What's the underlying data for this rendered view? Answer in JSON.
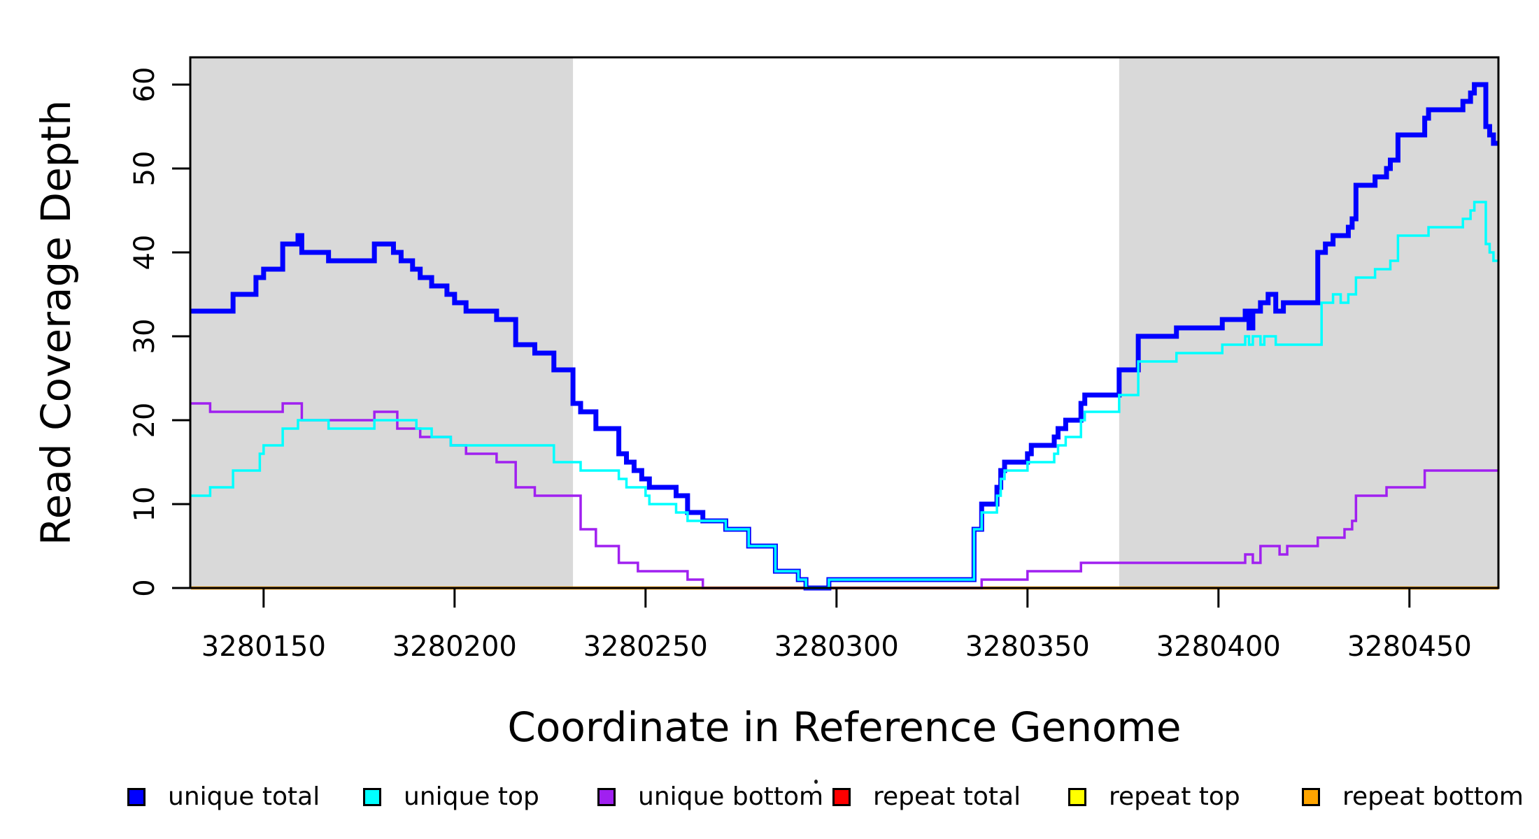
{
  "chart_data": {
    "type": "line",
    "line_style": "step",
    "xlabel": "Coordinate in Reference Genome",
    "ylabel": "Read Coverage Depth",
    "xlim": [
      3280130.8,
      3280473.3
    ],
    "ylim": [
      0,
      63.25
    ],
    "x_ticks": [
      3280150,
      3280200,
      3280250,
      3280300,
      3280350,
      3280400,
      3280450
    ],
    "y_ticks": [
      0,
      10,
      20,
      30,
      40,
      50,
      60
    ],
    "grid": false,
    "legend_position": "bottom",
    "shaded_regions": [
      {
        "from": 3280130.8,
        "to": 3280231,
        "color": "#D9D9D9"
      },
      {
        "from": 3280374,
        "to": 3280473.3,
        "color": "#D9D9D9"
      }
    ],
    "series": [
      {
        "name": "unique total",
        "color": "#0000FF",
        "width": 7,
        "draw_order": 4,
        "points": [
          [
            3280131,
            33
          ],
          [
            3280142,
            35
          ],
          [
            3280148,
            37
          ],
          [
            3280150,
            38
          ],
          [
            3280155,
            41
          ],
          [
            3280159,
            42
          ],
          [
            3280160,
            40
          ],
          [
            3280167,
            39
          ],
          [
            3280179,
            41
          ],
          [
            3280184,
            40
          ],
          [
            3280186,
            39
          ],
          [
            3280189,
            38
          ],
          [
            3280191,
            37
          ],
          [
            3280194,
            36
          ],
          [
            3280198,
            35
          ],
          [
            3280200,
            34
          ],
          [
            3280203,
            33
          ],
          [
            3280211,
            32
          ],
          [
            3280216,
            29
          ],
          [
            3280221,
            28
          ],
          [
            3280226,
            26
          ],
          [
            3280231,
            22
          ],
          [
            3280233,
            21
          ],
          [
            3280237,
            19
          ],
          [
            3280243,
            16
          ],
          [
            3280245,
            15
          ],
          [
            3280247,
            14
          ],
          [
            3280249,
            13
          ],
          [
            3280251,
            12
          ],
          [
            3280258,
            11
          ],
          [
            3280261,
            9
          ],
          [
            3280265,
            8
          ],
          [
            3280271,
            7
          ],
          [
            3280277,
            5
          ],
          [
            3280284,
            2
          ],
          [
            3280290,
            1
          ],
          [
            3280292,
            0
          ],
          [
            3280298,
            1
          ],
          [
            3280336,
            7
          ],
          [
            3280338,
            10
          ],
          [
            3280342,
            12
          ],
          [
            3280343,
            14
          ],
          [
            3280344,
            15
          ],
          [
            3280350,
            16
          ],
          [
            3280351,
            17
          ],
          [
            3280357,
            18
          ],
          [
            3280358,
            19
          ],
          [
            3280360,
            20
          ],
          [
            3280364,
            22
          ],
          [
            3280365,
            23
          ],
          [
            3280374,
            26
          ],
          [
            3280379,
            30
          ],
          [
            3280389,
            31
          ],
          [
            3280401,
            32
          ],
          [
            3280407,
            33
          ],
          [
            3280408,
            31
          ],
          [
            3280409,
            33
          ],
          [
            3280411,
            34
          ],
          [
            3280413,
            35
          ],
          [
            3280415,
            33
          ],
          [
            3280417,
            34
          ],
          [
            3280426,
            40
          ],
          [
            3280428,
            41
          ],
          [
            3280430,
            42
          ],
          [
            3280434,
            43
          ],
          [
            3280435,
            44
          ],
          [
            3280436,
            48
          ],
          [
            3280441,
            49
          ],
          [
            3280444,
            50
          ],
          [
            3280445,
            51
          ],
          [
            3280447,
            54
          ],
          [
            3280454,
            56
          ],
          [
            3280455,
            57
          ],
          [
            3280464,
            58
          ],
          [
            3280466,
            59
          ],
          [
            3280467,
            60
          ],
          [
            3280470,
            55
          ],
          [
            3280471,
            54
          ],
          [
            3280472,
            53
          ]
        ]
      },
      {
        "name": "unique top",
        "color": "#00FFFF",
        "width": 3.5,
        "draw_order": 5,
        "points": [
          [
            3280131,
            11
          ],
          [
            3280136,
            12
          ],
          [
            3280142,
            14
          ],
          [
            3280149,
            16
          ],
          [
            3280150,
            17
          ],
          [
            3280155,
            19
          ],
          [
            3280159,
            20
          ],
          [
            3280167,
            19
          ],
          [
            3280179,
            20
          ],
          [
            3280190,
            19
          ],
          [
            3280194,
            18
          ],
          [
            3280199,
            17
          ],
          [
            3280226,
            15
          ],
          [
            3280233,
            14
          ],
          [
            3280243,
            13
          ],
          [
            3280245,
            12
          ],
          [
            3280250,
            11
          ],
          [
            3280251,
            10
          ],
          [
            3280258,
            9
          ],
          [
            3280261,
            8
          ],
          [
            3280271,
            7
          ],
          [
            3280277,
            5
          ],
          [
            3280284,
            2
          ],
          [
            3280290,
            1
          ],
          [
            3280292,
            0
          ],
          [
            3280298,
            1
          ],
          [
            3280336,
            7
          ],
          [
            3280338,
            9
          ],
          [
            3280342,
            11
          ],
          [
            3280343,
            13
          ],
          [
            3280344,
            14
          ],
          [
            3280350,
            15
          ],
          [
            3280357,
            16
          ],
          [
            3280358,
            17
          ],
          [
            3280360,
            18
          ],
          [
            3280364,
            20
          ],
          [
            3280365,
            21
          ],
          [
            3280374,
            23
          ],
          [
            3280379,
            27
          ],
          [
            3280389,
            28
          ],
          [
            3280401,
            29
          ],
          [
            3280407,
            30
          ],
          [
            3280408,
            29
          ],
          [
            3280409,
            30
          ],
          [
            3280411,
            29
          ],
          [
            3280412,
            30
          ],
          [
            3280415,
            29
          ],
          [
            3280427,
            34
          ],
          [
            3280430,
            35
          ],
          [
            3280432,
            34
          ],
          [
            3280434,
            35
          ],
          [
            3280436,
            37
          ],
          [
            3280441,
            38
          ],
          [
            3280445,
            39
          ],
          [
            3280447,
            42
          ],
          [
            3280455,
            43
          ],
          [
            3280464,
            44
          ],
          [
            3280466,
            45
          ],
          [
            3280467,
            46
          ],
          [
            3280470,
            41
          ],
          [
            3280471,
            40
          ],
          [
            3280472,
            39
          ]
        ]
      },
      {
        "name": "unique bottom",
        "color": "#A020F0",
        "width": 3.5,
        "draw_order": 3,
        "points": [
          [
            3280131,
            22
          ],
          [
            3280136,
            21
          ],
          [
            3280155,
            22
          ],
          [
            3280160,
            20
          ],
          [
            3280179,
            21
          ],
          [
            3280185,
            19
          ],
          [
            3280191,
            18
          ],
          [
            3280199,
            17
          ],
          [
            3280203,
            16
          ],
          [
            3280211,
            15
          ],
          [
            3280216,
            12
          ],
          [
            3280221,
            11
          ],
          [
            3280233,
            7
          ],
          [
            3280237,
            5
          ],
          [
            3280243,
            3
          ],
          [
            3280248,
            2
          ],
          [
            3280261,
            1
          ],
          [
            3280265,
            0
          ],
          [
            3280338,
            1
          ],
          [
            3280350,
            2
          ],
          [
            3280364,
            3
          ],
          [
            3280407,
            4
          ],
          [
            3280409,
            3
          ],
          [
            3280411,
            5
          ],
          [
            3280416,
            4
          ],
          [
            3280418,
            5
          ],
          [
            3280426,
            6
          ],
          [
            3280433,
            7
          ],
          [
            3280435,
            8
          ],
          [
            3280436,
            11
          ],
          [
            3280444,
            12
          ],
          [
            3280454,
            14
          ]
        ]
      },
      {
        "name": "repeat total",
        "color": "#FF0000",
        "width": 3.5,
        "draw_order": 0,
        "points": [
          [
            3280131,
            0
          ]
        ]
      },
      {
        "name": "repeat top",
        "color": "#FFFF00",
        "width": 3.5,
        "draw_order": 1,
        "points": [
          [
            3280131,
            0
          ]
        ]
      },
      {
        "name": "repeat bottom",
        "color": "#FFA500",
        "width": 4.5,
        "draw_order": 2,
        "points": [
          [
            3280131,
            0
          ]
        ]
      }
    ]
  },
  "legend": {
    "items": [
      {
        "label": "unique total",
        "color": "#0000FF"
      },
      {
        "label": "unique top",
        "color": "#00FFFF"
      },
      {
        "label": "unique bottom",
        "color": "#A020F0"
      },
      {
        "label": "repeat total",
        "color": "#FF0000"
      },
      {
        "label": "repeat top",
        "color": "#FFFF00"
      },
      {
        "label": "repeat bottom",
        "color": "#FFA500"
      }
    ]
  },
  "axes": {
    "x_title": "Coordinate in Reference Genome",
    "y_title": "Read Coverage Depth",
    "x_tick_labels": [
      "3280150",
      "3280200",
      "3280250",
      "3280300",
      "3280350",
      "3280400",
      "3280450"
    ],
    "y_tick_labels": [
      "0",
      "10",
      "20",
      "30",
      "40",
      "50",
      "60"
    ]
  }
}
